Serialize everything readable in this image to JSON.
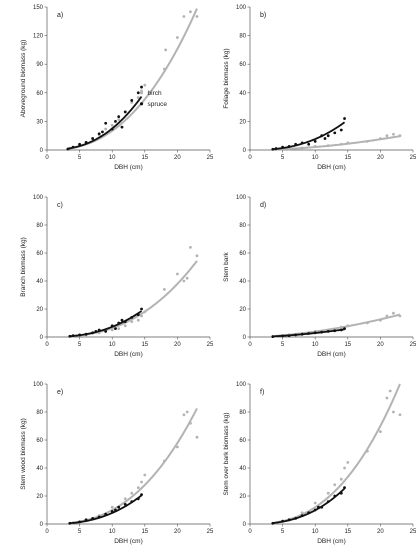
{
  "colors": {
    "birch": "#b3b3b3",
    "spruce": "#111111",
    "axis": "#555555"
  },
  "chart_data": [
    {
      "type": "scatter",
      "panel_label": "a)",
      "xlabel": "DBH (cm)",
      "ylabel": "Aboveground biomass (kg)",
      "xlim": [
        0,
        25
      ],
      "ylim": [
        0,
        150
      ],
      "xticks": [
        "0",
        "5",
        "10",
        "15",
        "20",
        "25"
      ],
      "yticks": [
        "0",
        "30",
        "60",
        "90",
        "120",
        "150"
      ],
      "legend": {
        "placement": "center-right",
        "entries": [
          "birch",
          "spruce"
        ]
      },
      "series": [
        {
          "name": "birch",
          "x": [
            3.5,
            5,
            6,
            7,
            8,
            9,
            10,
            11,
            12,
            13,
            14,
            14.5,
            15,
            18,
            18.2,
            20,
            21,
            22,
            23
          ],
          "y": [
            2,
            5,
            8,
            12,
            16,
            22,
            26,
            32,
            40,
            50,
            55,
            62,
            68,
            85,
            105,
            118,
            140,
            145,
            140
          ],
          "fit": {
            "a": 0.08,
            "b": 2.4
          }
        },
        {
          "name": "spruce",
          "x": [
            3.2,
            4,
            5,
            6,
            7,
            8,
            8.5,
            9,
            10,
            10.5,
            11,
            11.5,
            12,
            13,
            14,
            14.5
          ],
          "y": [
            1,
            3,
            6,
            8,
            12,
            17,
            19,
            28,
            22,
            30,
            35,
            24,
            40,
            52,
            60,
            66
          ],
          "fit": {
            "a": 0.08,
            "b": 2.45
          }
        }
      ]
    },
    {
      "type": "scatter",
      "panel_label": "b)",
      "xlabel": "DBH (cm)",
      "ylabel": "Foliage biomass (kg)",
      "xlim": [
        0,
        25
      ],
      "ylim": [
        0,
        100
      ],
      "xticks": [
        "0",
        "5",
        "10",
        "15",
        "20",
        "25"
      ],
      "yticks": [
        "0",
        "20",
        "40",
        "60",
        "80",
        "100"
      ],
      "series": [
        {
          "name": "birch",
          "x": [
            4,
            6,
            8,
            10,
            12,
            14,
            15,
            18,
            20,
            21,
            22,
            23
          ],
          "y": [
            0.3,
            0.8,
            1.5,
            2.5,
            3,
            4,
            5,
            6,
            8,
            10,
            11,
            10
          ],
          "fit": {
            "a": 0.0294,
            "b": 1.85
          }
        },
        {
          "name": "spruce",
          "x": [
            3.5,
            4,
            5,
            6,
            7,
            8,
            9,
            10,
            11,
            11.5,
            12,
            13,
            14,
            14.5
          ],
          "y": [
            0.5,
            1,
            2,
            2.5,
            4,
            5,
            4,
            6,
            10,
            8,
            10,
            12,
            14,
            22
          ],
          "fit": {
            "a": 0.0242,
            "b": 2.5
          }
        }
      ]
    },
    {
      "type": "scatter",
      "panel_label": "c)",
      "xlabel": "DBH (cm)",
      "ylabel": "Branch biomass (kg)",
      "xlim": [
        0,
        25
      ],
      "ylim": [
        0,
        100
      ],
      "xticks": [
        "0",
        "5",
        "10",
        "15",
        "20",
        "25"
      ],
      "yticks": [
        "0",
        "20",
        "40",
        "60",
        "80",
        "100"
      ],
      "series": [
        {
          "name": "birch",
          "x": [
            4,
            6,
            8,
            10,
            11,
            12,
            13,
            14,
            14.5,
            15,
            18,
            20,
            21,
            21.5,
            22,
            23
          ],
          "y": [
            0.5,
            1.5,
            3,
            5,
            6,
            8,
            11,
            12,
            15,
            18,
            34,
            45,
            40,
            42,
            64,
            58
          ],
          "fit": {
            "a": 0.0172,
            "b": 2.57
          }
        },
        {
          "name": "spruce",
          "x": [
            3.5,
            4,
            5,
            6,
            7,
            7.5,
            8,
            9,
            10,
            10.5,
            11,
            11.5,
            12,
            13,
            14,
            14.5
          ],
          "y": [
            0.5,
            1,
            1.5,
            2,
            3,
            4,
            5,
            4,
            8,
            6,
            10,
            12,
            11,
            14,
            16,
            20
          ],
          "fit": {
            "a": 0.022,
            "b": 2.52
          }
        }
      ]
    },
    {
      "type": "scatter",
      "panel_label": "d)",
      "xlabel": "DBH (cm)",
      "ylabel": "Stem bark",
      "xlim": [
        0,
        25
      ],
      "ylim": [
        0,
        100
      ],
      "xticks": [
        "0",
        "5",
        "10",
        "15",
        "20",
        "25"
      ],
      "yticks": [
        "0",
        "20",
        "40",
        "60",
        "80",
        "100"
      ],
      "series": [
        {
          "name": "birch",
          "x": [
            4,
            6,
            8,
            10,
            12,
            14,
            15,
            18,
            20,
            21,
            22,
            23
          ],
          "y": [
            0.5,
            1.5,
            2,
            4,
            5,
            7,
            8,
            10,
            12,
            15,
            17,
            15
          ],
          "fit": {
            "a": 0.0774,
            "b": 1.7
          }
        },
        {
          "name": "spruce",
          "x": [
            3.5,
            5,
            6,
            7,
            8,
            9,
            10,
            11,
            12,
            13,
            14,
            14.5
          ],
          "y": [
            0.3,
            0.8,
            1,
            1.5,
            2,
            2.5,
            3,
            3.5,
            4,
            4.5,
            5,
            6
          ],
          "fit": {
            "a": 0.0506,
            "b": 1.75
          }
        }
      ]
    },
    {
      "type": "scatter",
      "panel_label": "e)",
      "xlabel": "DBH (cm)",
      "ylabel": "Stem wood biomass (kg)",
      "xlim": [
        0,
        25
      ],
      "ylim": [
        0,
        100
      ],
      "xticks": [
        "0",
        "5",
        "10",
        "15",
        "20",
        "25"
      ],
      "yticks": [
        "0",
        "20",
        "40",
        "60",
        "80",
        "100"
      ],
      "series": [
        {
          "name": "birch",
          "x": [
            4,
            6,
            8,
            10,
            12,
            13,
            14,
            14.5,
            15,
            18,
            20,
            21,
            21.5,
            22,
            23
          ],
          "y": [
            1,
            3,
            6,
            12,
            18,
            22,
            26,
            30,
            35,
            45,
            55,
            78,
            80,
            72,
            62
          ],
          "fit": {
            "a": 0.0287,
            "b": 2.54
          }
        },
        {
          "name": "spruce",
          "x": [
            3.5,
            5,
            6,
            7,
            8,
            9,
            10,
            10.5,
            11,
            12,
            13,
            14,
            14.5
          ],
          "y": [
            0.5,
            1.5,
            3,
            4,
            5,
            7,
            9,
            10,
            12,
            14,
            16,
            18,
            21
          ],
          "fit": {
            "a": 0.0212,
            "b": 2.57
          }
        }
      ]
    },
    {
      "type": "scatter",
      "panel_label": "f)",
      "xlabel": "DBH (cm)",
      "ylabel": "Stem over bark biomass (kg)",
      "xlim": [
        0,
        25
      ],
      "ylim": [
        0,
        100
      ],
      "xticks": [
        "0",
        "5",
        "10",
        "15",
        "20",
        "25"
      ],
      "yticks": [
        "0",
        "20",
        "40",
        "60",
        "80",
        "100"
      ],
      "series": [
        {
          "name": "birch",
          "x": [
            4,
            6,
            8,
            10,
            12,
            13,
            14,
            14.5,
            15,
            18,
            20,
            21,
            21.5,
            22,
            23
          ],
          "y": [
            1,
            3,
            8,
            15,
            22,
            28,
            32,
            40,
            44,
            52,
            66,
            90,
            95,
            80,
            78
          ],
          "fit": {
            "a": 0.0337,
            "b": 2.55
          }
        },
        {
          "name": "spruce",
          "x": [
            3.5,
            5,
            6,
            7,
            8,
            9,
            10,
            10.5,
            11,
            12,
            13,
            14,
            14.5
          ],
          "y": [
            0.5,
            2,
            3,
            4,
            6,
            8,
            10,
            12,
            12,
            16,
            20,
            22,
            26
          ],
          "fit": {
            "a": 0.0277,
            "b": 2.55
          }
        }
      ]
    }
  ]
}
